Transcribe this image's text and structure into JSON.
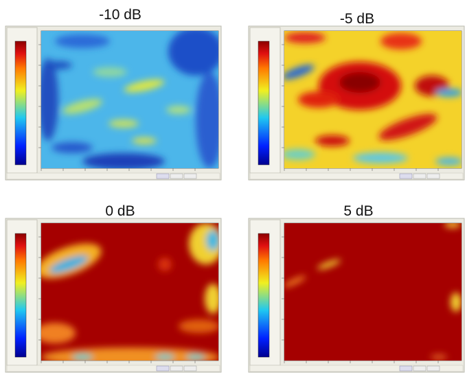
{
  "panels": [
    {
      "title": "-10 dB"
    },
    {
      "title": "-5 dB"
    },
    {
      "title": "0 dB"
    },
    {
      "title": "5 dB"
    }
  ]
}
